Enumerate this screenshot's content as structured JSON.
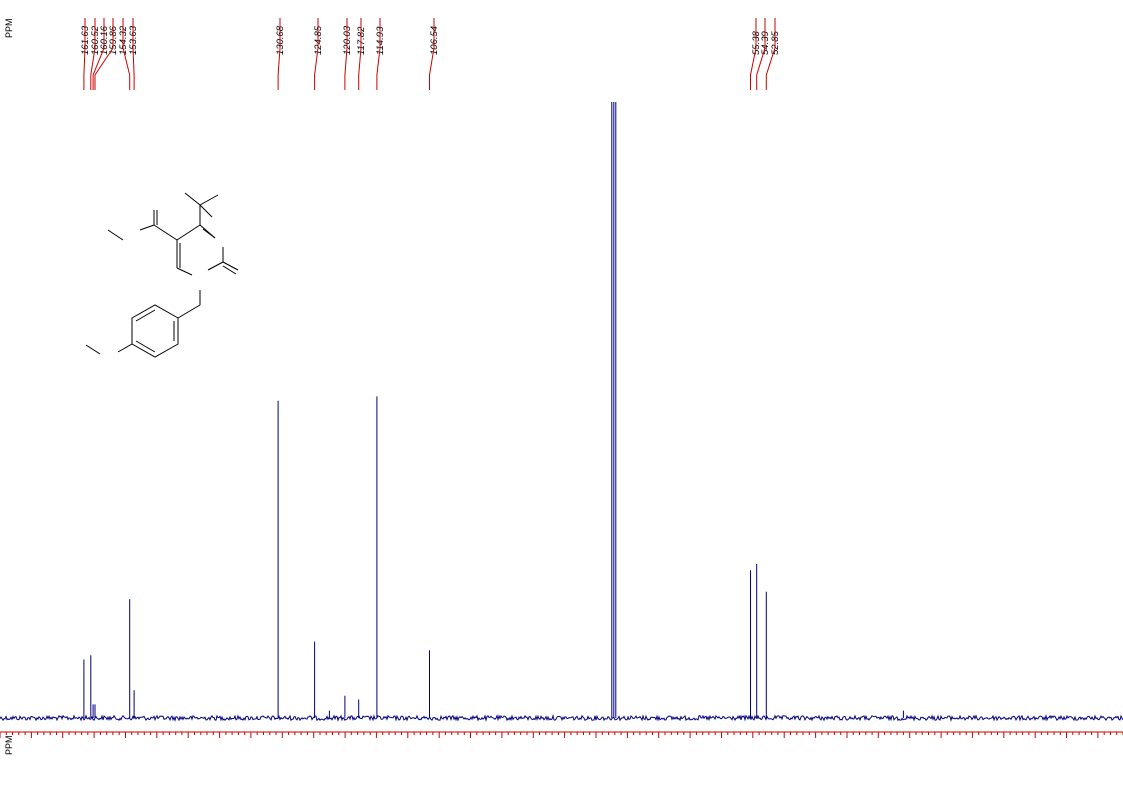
{
  "chart_data": {
    "type": "line",
    "axis_label": "PPM",
    "axis_label_top": "PPM",
    "peak_labels": [
      "161.63",
      "160.52",
      "160.16",
      "159.86",
      "154.32",
      "153.63",
      "130.68",
      "124.85",
      "120.03",
      "117.82",
      "114.93",
      "106.54",
      "55.38",
      "54.39",
      "52.85"
    ],
    "peaks": [
      {
        "ppm": 161.63,
        "height": 0.095
      },
      {
        "ppm": 160.52,
        "height": 0.102
      },
      {
        "ppm": 160.16,
        "height": 0.022
      },
      {
        "ppm": 159.86,
        "height": 0.022
      },
      {
        "ppm": 154.32,
        "height": 0.193
      },
      {
        "ppm": 153.63,
        "height": 0.045
      },
      {
        "ppm": 130.68,
        "height": 0.515
      },
      {
        "ppm": 124.85,
        "height": 0.124
      },
      {
        "ppm": 122.5,
        "height": 0.012
      },
      {
        "ppm": 120.03,
        "height": 0.036
      },
      {
        "ppm": 117.82,
        "height": 0.03
      },
      {
        "ppm": 114.93,
        "height": 0.522
      },
      {
        "ppm": 106.54,
        "height": 0.11
      },
      {
        "ppm": 77.16,
        "height": 1.0
      },
      {
        "ppm": 76.84,
        "height": 1.0
      },
      {
        "ppm": 77.48,
        "height": 1.0
      },
      {
        "ppm": 55.38,
        "height": 0.24
      },
      {
        "ppm": 54.39,
        "height": 0.25
      },
      {
        "ppm": 52.85,
        "height": 0.205
      },
      {
        "ppm": 31.0,
        "height": 0.012
      }
    ],
    "x_range_ppm": [
      175,
      -4
    ],
    "line_color": "#000080",
    "label_line_color": "#cc0000",
    "tick_color": "#cc0000"
  }
}
